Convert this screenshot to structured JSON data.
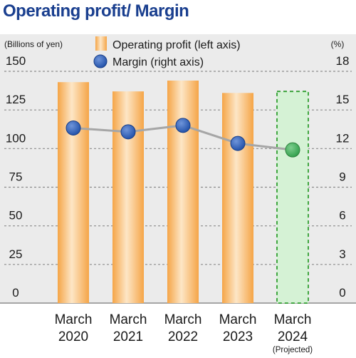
{
  "chart_data": {
    "title": "Operating profit/ Margin",
    "type": "bar",
    "left_axis": {
      "label": "(Billions of yen)",
      "ylim": [
        0,
        150
      ],
      "ticks": [
        "0",
        "25",
        "50",
        "75",
        "100",
        "125",
        "150"
      ]
    },
    "right_axis": {
      "label": "(%)",
      "ylim": [
        0,
        18
      ],
      "ticks": [
        "0",
        "3",
        "6",
        "9",
        "12",
        "15",
        "18"
      ]
    },
    "categories": [
      {
        "line1": "March",
        "line2": "2020",
        "note": ""
      },
      {
        "line1": "March",
        "line2": "2021",
        "note": ""
      },
      {
        "line1": "March",
        "line2": "2022",
        "note": ""
      },
      {
        "line1": "March",
        "line2": "2023",
        "note": ""
      },
      {
        "line1": "March",
        "line2": "2024",
        "note": "(Projected)"
      }
    ],
    "series": [
      {
        "name": "Operating profit (left axis)",
        "type": "bar",
        "axis": "left",
        "values": [
          143,
          137,
          144,
          136,
          137
        ],
        "projected": [
          false,
          false,
          false,
          false,
          true
        ]
      },
      {
        "name": "Margin (right axis)",
        "type": "line",
        "axis": "right",
        "values": [
          13.6,
          13.3,
          13.8,
          12.4,
          11.9
        ]
      }
    ],
    "grid": true,
    "legend": "top"
  },
  "colors": {
    "title": "#1a3f8f",
    "plot_background": "#ebebeb",
    "bar": "#f5a547",
    "bar_highlight": "#fde6c6",
    "projected_bar": "#d5f2d5",
    "projected_border": "#2f9e2f",
    "line": "#a6a6a6",
    "marker": "#1f4fa8",
    "marker_projected": "#2f9e4a",
    "grid": "#8c8c8c",
    "text": "#1a1a1a"
  }
}
